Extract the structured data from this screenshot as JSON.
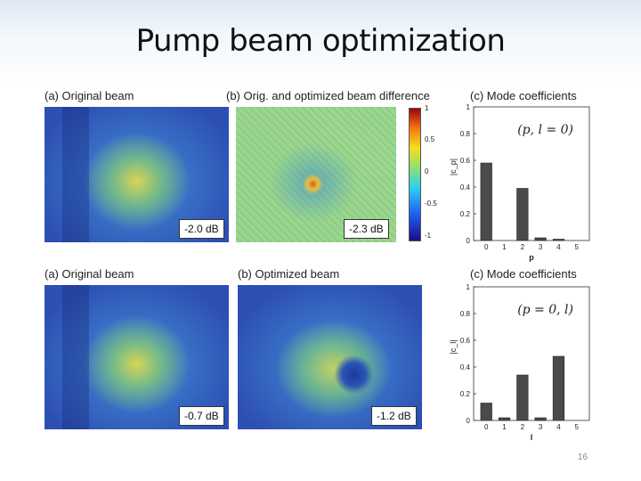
{
  "slide": {
    "title": "Pump beam optimization",
    "page_number": "16"
  },
  "top_row": {
    "panel_a_label": "(a) Original beam",
    "panel_a_db": "-2.0 dB",
    "panel_b_label": "(b) Orig. and optimized beam difference",
    "panel_b_db": "-2.3 dB",
    "colorbar_ticks": [
      "1",
      "0.5",
      "0",
      "-0.5",
      "-1"
    ],
    "panel_c_label": "(c) Mode coefficients"
  },
  "bottom_row": {
    "panel_a_label": "(a) Original beam",
    "panel_a_db": "-0.7 dB",
    "panel_b_label": "(b) Optimized beam",
    "panel_b_db": "-1.2 dB",
    "panel_c_label": "(c) Mode coefficients"
  },
  "chart_data": [
    {
      "type": "bar",
      "annotation": "(p, l = 0)",
      "categories": [
        "0",
        "1",
        "2",
        "3",
        "4",
        "5"
      ],
      "values": [
        0.58,
        0.0,
        0.39,
        0.02,
        0.01,
        0.0
      ],
      "xlabel": "p",
      "ylabel": "|c_p|",
      "ylim": [
        0,
        1
      ],
      "yticks": [
        "0",
        "0.2",
        "0.4",
        "0.6",
        "0.8",
        "1"
      ],
      "bar_color": "#4a4a4a"
    },
    {
      "type": "bar",
      "annotation": "(p = 0, l)",
      "categories": [
        "0",
        "1",
        "2",
        "3",
        "4",
        "5"
      ],
      "values": [
        0.13,
        0.02,
        0.34,
        0.02,
        0.48,
        0.0
      ],
      "xlabel": "l",
      "ylabel": "|c_l|",
      "ylim": [
        0,
        1
      ],
      "yticks": [
        "0",
        "0.2",
        "0.4",
        "0.6",
        "0.8",
        "1"
      ],
      "bar_color": "#4a4a4a"
    }
  ]
}
